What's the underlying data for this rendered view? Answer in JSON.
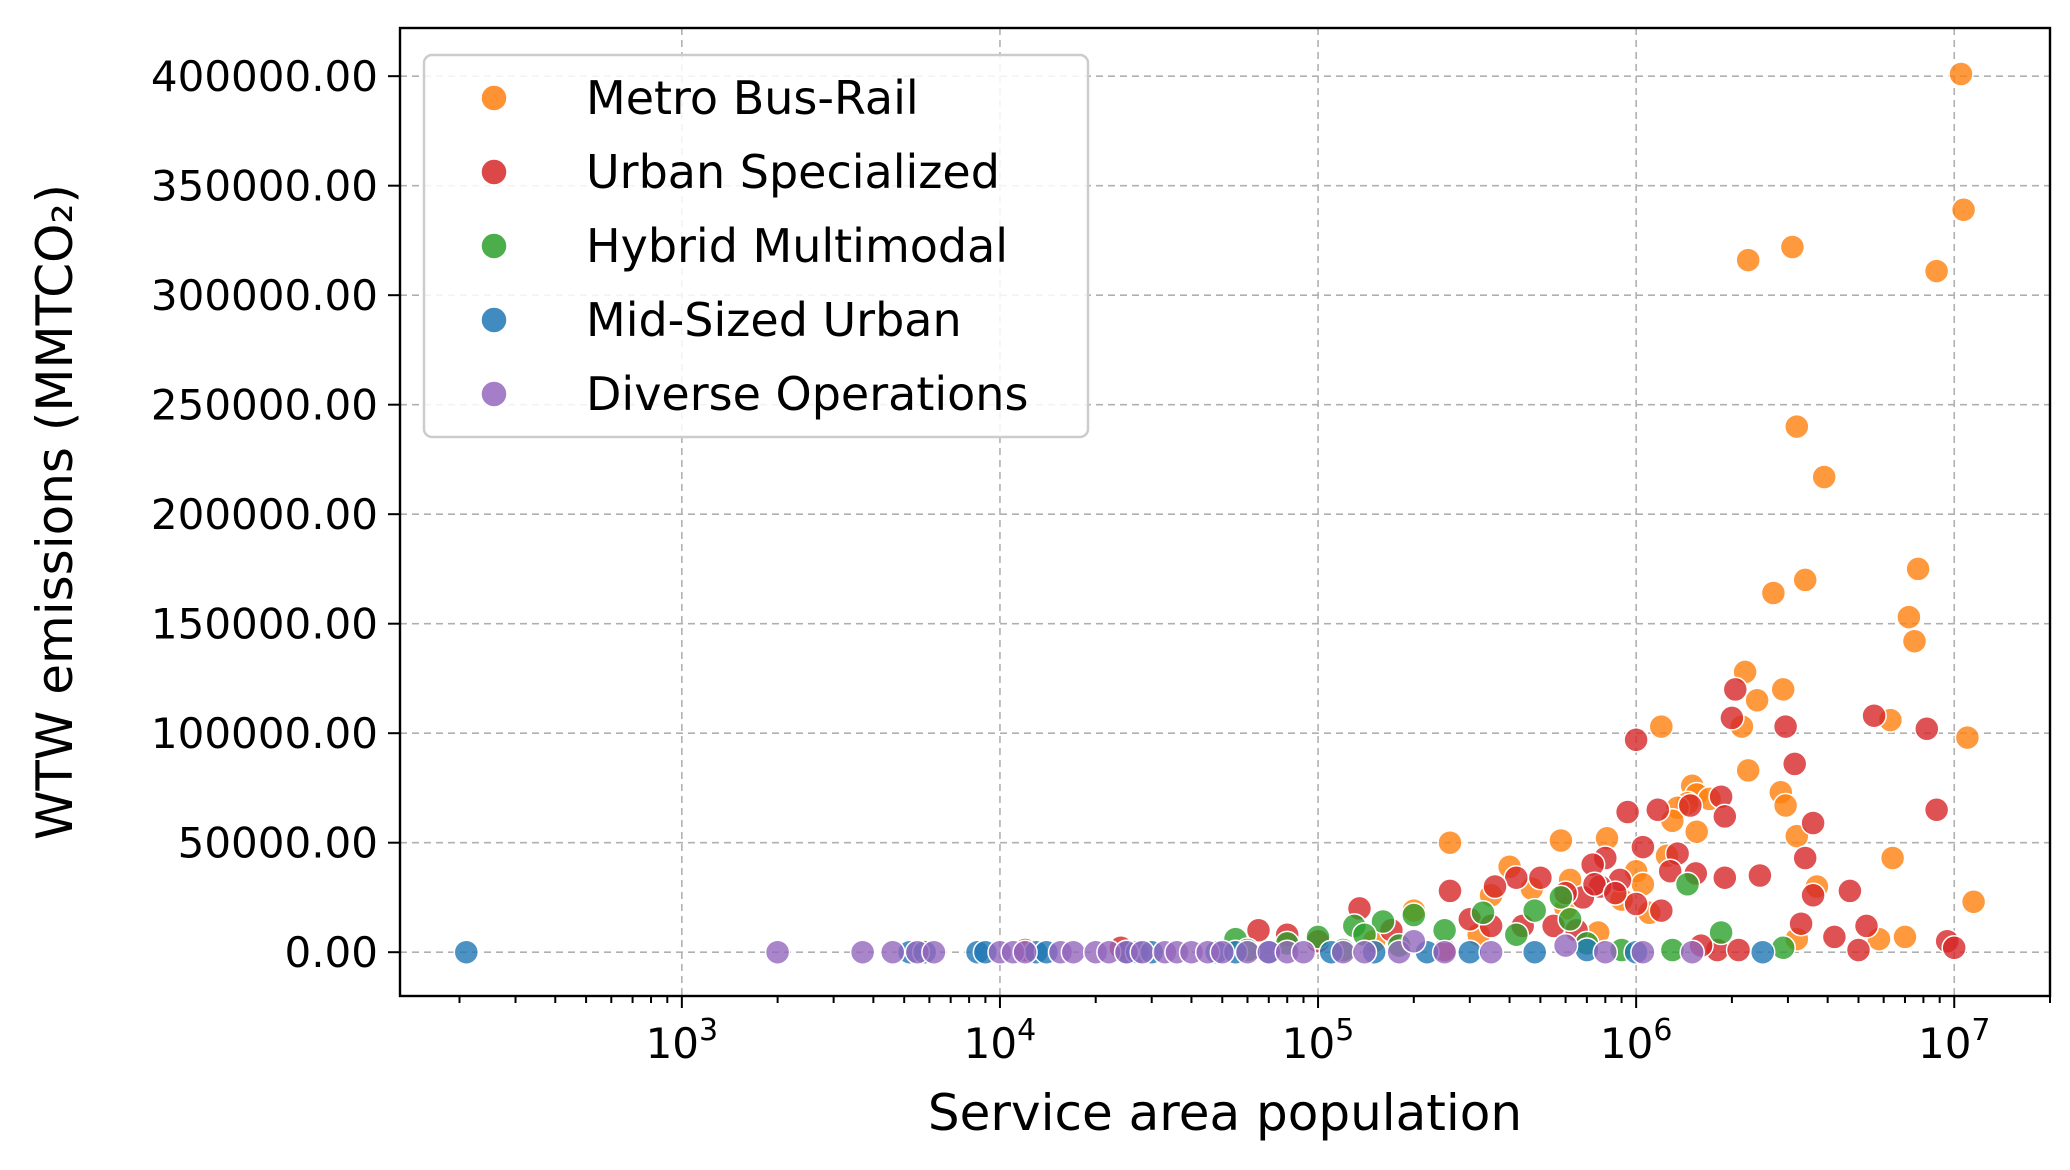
{
  "chart_data": {
    "type": "scatter",
    "xlabel": "Service area population",
    "ylabel": "WTW emissions (MMTCO₂)",
    "x_scale": "log",
    "xlim": [
      130,
      20000000
    ],
    "ylim": [
      -20000,
      422000
    ],
    "y_ticks": [
      0,
      50000,
      100000,
      150000,
      200000,
      250000,
      300000,
      350000,
      400000
    ],
    "y_tick_labels": [
      "0.00",
      "50000.00",
      "100000.00",
      "150000.00",
      "200000.00",
      "250000.00",
      "300000.00",
      "350000.00",
      "400000.00"
    ],
    "x_ticks": [
      {
        "value": 1000,
        "base": "10",
        "exp": "3"
      },
      {
        "value": 10000,
        "base": "10",
        "exp": "4"
      },
      {
        "value": 100000,
        "base": "10",
        "exp": "5"
      },
      {
        "value": 1000000,
        "base": "10",
        "exp": "6"
      },
      {
        "value": 10000000,
        "base": "10",
        "exp": "7"
      }
    ],
    "grid": true,
    "legend_position": "top-left",
    "series": [
      {
        "name": "Metro Bus-Rail",
        "color": "#ff7f0e",
        "points": [
          [
            10500000,
            401000
          ],
          [
            10700000,
            339000
          ],
          [
            3100000,
            322000
          ],
          [
            2250000,
            316000
          ],
          [
            8800000,
            311000
          ],
          [
            3200000,
            240000
          ],
          [
            3900000,
            217000
          ],
          [
            7700000,
            175000
          ],
          [
            3400000,
            170000
          ],
          [
            2700000,
            164000
          ],
          [
            7200000,
            153000
          ],
          [
            7500000,
            142000
          ],
          [
            2200000,
            128000
          ],
          [
            2900000,
            120000
          ],
          [
            2400000,
            115000
          ],
          [
            6300000,
            106000
          ],
          [
            2150000,
            103000
          ],
          [
            1200000,
            103000
          ],
          [
            11000000,
            98000
          ],
          [
            2250000,
            83000
          ],
          [
            1500000,
            76000
          ],
          [
            2850000,
            73000
          ],
          [
            1550000,
            72000
          ],
          [
            1700000,
            70000
          ],
          [
            1450000,
            68000
          ],
          [
            2950000,
            67000
          ],
          [
            1350000,
            66000
          ],
          [
            1300000,
            60000
          ],
          [
            3200000,
            53000
          ],
          [
            810000,
            52000
          ],
          [
            580000,
            51000
          ],
          [
            1550000,
            55000
          ],
          [
            260000,
            50000
          ],
          [
            6400000,
            43000
          ],
          [
            1250000,
            44000
          ],
          [
            400000,
            39000
          ],
          [
            1000000,
            37000
          ],
          [
            620000,
            33000
          ],
          [
            1050000,
            31000
          ],
          [
            3700000,
            30000
          ],
          [
            470000,
            29000
          ],
          [
            350000,
            26000
          ],
          [
            11500000,
            23000
          ],
          [
            900000,
            24000
          ],
          [
            1100000,
            18000
          ],
          [
            600000,
            20000
          ],
          [
            200000,
            19000
          ],
          [
            7000000,
            7000
          ],
          [
            3200000,
            6000
          ],
          [
            5800000,
            6000
          ],
          [
            320000,
            8000
          ],
          [
            150000,
            5000
          ],
          [
            760000,
            9000
          ]
        ]
      },
      {
        "name": "Urban Specialized",
        "color": "#d62728",
        "points": [
          [
            2050000,
            120000
          ],
          [
            2000000,
            107000
          ],
          [
            5600000,
            108000
          ],
          [
            8200000,
            102000
          ],
          [
            2950000,
            103000
          ],
          [
            1000000,
            97000
          ],
          [
            3150000,
            86000
          ],
          [
            1850000,
            71000
          ],
          [
            1480000,
            67000
          ],
          [
            1900000,
            62000
          ],
          [
            8800000,
            65000
          ],
          [
            1170000,
            65000
          ],
          [
            940000,
            64000
          ],
          [
            3600000,
            59000
          ],
          [
            2450000,
            35000
          ],
          [
            1900000,
            34000
          ],
          [
            3400000,
            43000
          ],
          [
            1350000,
            45000
          ],
          [
            1050000,
            48000
          ],
          [
            800000,
            43000
          ],
          [
            730000,
            40000
          ],
          [
            1280000,
            37000
          ],
          [
            1540000,
            36000
          ],
          [
            890000,
            33000
          ],
          [
            770000,
            30000
          ],
          [
            4700000,
            28000
          ],
          [
            3600000,
            26000
          ],
          [
            680000,
            25000
          ],
          [
            1000000,
            22000
          ],
          [
            420000,
            34000
          ],
          [
            500000,
            34000
          ],
          [
            360000,
            30000
          ],
          [
            260000,
            28000
          ],
          [
            740000,
            31000
          ],
          [
            860000,
            27000
          ],
          [
            600000,
            27000
          ],
          [
            1200000,
            19000
          ],
          [
            135000,
            20000
          ],
          [
            170000,
            10000
          ],
          [
            300000,
            15000
          ],
          [
            440000,
            12000
          ],
          [
            550000,
            12000
          ],
          [
            650000,
            10000
          ],
          [
            3300000,
            13000
          ],
          [
            5300000,
            12000
          ],
          [
            4200000,
            7000
          ],
          [
            5000000,
            1000
          ],
          [
            9500000,
            5000
          ],
          [
            10000000,
            2000
          ],
          [
            1800000,
            1000
          ],
          [
            2100000,
            1000
          ],
          [
            12000,
            1000
          ],
          [
            24000,
            2000
          ],
          [
            65000,
            10000
          ],
          [
            80000,
            8000
          ],
          [
            100000,
            5000
          ],
          [
            250000,
            1000
          ],
          [
            350000,
            12000
          ],
          [
            1600000,
            3000
          ]
        ]
      },
      {
        "name": "Hybrid Multimodal",
        "color": "#2ca02c",
        "points": [
          [
            1450000,
            31000
          ],
          [
            1850000,
            9000
          ],
          [
            580000,
            25000
          ],
          [
            620000,
            15000
          ],
          [
            480000,
            19000
          ],
          [
            160000,
            14000
          ],
          [
            130000,
            12000
          ],
          [
            330000,
            18000
          ],
          [
            200000,
            17000
          ],
          [
            250000,
            10000
          ],
          [
            100000,
            7000
          ],
          [
            55000,
            6000
          ],
          [
            80000,
            4000
          ],
          [
            140000,
            8000
          ],
          [
            420000,
            8000
          ],
          [
            700000,
            4000
          ],
          [
            1300000,
            1000
          ],
          [
            2900000,
            2000
          ],
          [
            900000,
            1000
          ],
          [
            120000,
            1000
          ],
          [
            60000,
            1000
          ],
          [
            180000,
            3000
          ]
        ]
      },
      {
        "name": "Mid-Sized Urban",
        "color": "#1f77b4",
        "points": [
          [
            210,
            0
          ],
          [
            5200,
            0
          ],
          [
            5800,
            0
          ],
          [
            8500,
            0
          ],
          [
            9000,
            0
          ],
          [
            13000,
            0
          ],
          [
            14000,
            0
          ],
          [
            25000,
            0
          ],
          [
            27000,
            0
          ],
          [
            30000,
            0
          ],
          [
            48000,
            0
          ],
          [
            55000,
            0
          ],
          [
            70000,
            0
          ],
          [
            110000,
            0
          ],
          [
            150000,
            0
          ],
          [
            220000,
            0
          ],
          [
            300000,
            0
          ],
          [
            480000,
            0
          ],
          [
            700000,
            1000
          ],
          [
            1000000,
            0
          ],
          [
            2500000,
            0
          ]
        ]
      },
      {
        "name": "Diverse Operations",
        "color": "#9467bd",
        "points": [
          [
            2000,
            0
          ],
          [
            3700,
            0
          ],
          [
            4600,
            0
          ],
          [
            5500,
            0
          ],
          [
            6200,
            0
          ],
          [
            10000,
            0
          ],
          [
            11000,
            0
          ],
          [
            12000,
            0
          ],
          [
            15500,
            0
          ],
          [
            17000,
            0
          ],
          [
            20000,
            0
          ],
          [
            22000,
            0
          ],
          [
            25000,
            0
          ],
          [
            28000,
            0
          ],
          [
            33000,
            0
          ],
          [
            36000,
            0
          ],
          [
            40000,
            0
          ],
          [
            45000,
            0
          ],
          [
            50000,
            0
          ],
          [
            60000,
            0
          ],
          [
            70000,
            0
          ],
          [
            80000,
            0
          ],
          [
            90000,
            0
          ],
          [
            120000,
            0
          ],
          [
            140000,
            0
          ],
          [
            180000,
            0
          ],
          [
            200000,
            5000
          ],
          [
            250000,
            0
          ],
          [
            350000,
            0
          ],
          [
            600000,
            3000
          ],
          [
            800000,
            0
          ],
          [
            1050000,
            0
          ],
          [
            1500000,
            0
          ]
        ]
      }
    ]
  }
}
